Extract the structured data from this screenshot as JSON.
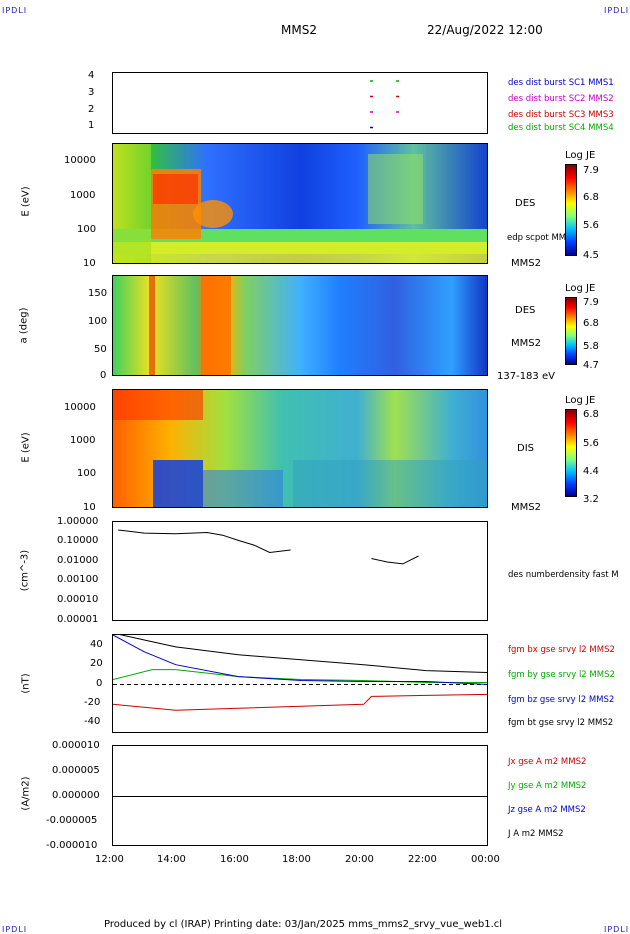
{
  "header": {
    "corner": "IPDLI",
    "spacecraft": "MMS2",
    "datetime": "22/Aug/2022 12:00"
  },
  "footer": {
    "text": "Produced by cl (IRAP)   Printing date: 03/Jan/2025   mms_mms2_srvy_vue_web1.cl"
  },
  "time_axis": {
    "ticks": [
      "12:00",
      "14:00",
      "16:00",
      "18:00",
      "20:00",
      "22:00",
      "00:00"
    ]
  },
  "panels": {
    "p1": {
      "ticks": [
        "4",
        "3",
        "2",
        "1"
      ],
      "legend": [
        "des dist burst SC1 MMS1",
        "des dist burst SC2 MMS2",
        "des dist burst SC3 MMS3",
        "des dist burst SC4 MMS4"
      ],
      "legend_colors": [
        "#0000cc",
        "#cc00cc",
        "#cc0000",
        "#00aa00"
      ]
    },
    "p2": {
      "ylabel": "E (eV)",
      "ticks": [
        "10000",
        "1000",
        "100",
        "10"
      ],
      "right1": "DES",
      "right2": "edp scpot MMS2",
      "right3": "MMS2",
      "cbar_title": "Log JE",
      "cbar_ticks": [
        "7.9",
        "6.8",
        "5.6",
        "4.5"
      ]
    },
    "p3": {
      "ylabel": "a (deg)",
      "ticks": [
        "150",
        "100",
        "50",
        "0"
      ],
      "right1": "DES",
      "right2": "MMS2",
      "right3": "137-183 eV",
      "cbar_title": "Log JE",
      "cbar_ticks": [
        "7.9",
        "6.8",
        "5.8",
        "4.7"
      ]
    },
    "p4": {
      "ylabel": "E (eV)",
      "ticks": [
        "10000",
        "1000",
        "100",
        "10"
      ],
      "right1": "DIS",
      "right2": "MMS2",
      "cbar_title": "Log JE",
      "cbar_ticks": [
        "6.8",
        "5.6",
        "4.4",
        "3.2"
      ]
    },
    "p5": {
      "ylabel": "(cm^-3)",
      "ticks": [
        "1.00000",
        "0.10000",
        "0.01000",
        "0.00100",
        "0.00010",
        "0.00001"
      ],
      "right1": "des numberdensity fast M"
    },
    "p6": {
      "ylabel": "(nT)",
      "ticks": [
        "40",
        "20",
        "0",
        "-20",
        "-40"
      ],
      "legend": [
        "fgm bx gse srvy l2 MMS2",
        "fgm by gse srvy l2 MMS2",
        "fgm bz gse srvy l2 MMS2",
        "fgm bt gse srvy l2 MMS2"
      ],
      "legend_colors": [
        "#cc0000",
        "#00aa00",
        "#0000cc",
        "#000000"
      ]
    },
    "p7": {
      "ylabel": "(A/m2)",
      "ticks": [
        "0.000010",
        "0.000005",
        "0.000000",
        "-0.000005",
        "-0.000010"
      ],
      "legend": [
        "Jx gse A m2 MMS2",
        "Jy gse A m2 MMS2",
        "Jz gse A m2 MMS2",
        "J A m2 MMS2"
      ],
      "legend_colors": [
        "#cc0000",
        "#00aa00",
        "#0000cc",
        "#000000"
      ]
    }
  },
  "chart_data": [
    {
      "type": "scatter",
      "title": "",
      "ylabel": "",
      "ylim": [
        0.5,
        4.5
      ],
      "series": [
        {
          "name": "des dist burst SC1 MMS1",
          "x": [
            "20:15"
          ],
          "y": [
            1
          ]
        },
        {
          "name": "des dist burst SC2 MMS2",
          "x": [
            "20:15",
            "21:05"
          ],
          "y": [
            2,
            2
          ]
        },
        {
          "name": "des dist burst SC3 MMS3",
          "x": [
            "20:15",
            "21:05"
          ],
          "y": [
            3,
            3
          ]
        },
        {
          "name": "des dist burst SC4 MMS4",
          "x": [
            "20:15",
            "21:05"
          ],
          "y": [
            4,
            4
          ]
        }
      ]
    },
    {
      "type": "heatmap",
      "ylabel": "E (eV)",
      "yscale": "log",
      "ylim": [
        10,
        30000
      ],
      "clabel": "Log JE",
      "clim": [
        4.5,
        7.9
      ]
    },
    {
      "type": "heatmap",
      "ylabel": "a (deg)",
      "ylim": [
        0,
        180
      ],
      "clabel": "Log JE",
      "clim": [
        4.7,
        7.9
      ]
    },
    {
      "type": "heatmap",
      "ylabel": "E (eV)",
      "yscale": "log",
      "ylim": [
        10,
        30000
      ],
      "clabel": "Log JE",
      "clim": [
        3.2,
        6.8
      ]
    },
    {
      "type": "line",
      "ylabel": "(cm^-3)",
      "yscale": "log",
      "ylim": [
        1e-05,
        1
      ],
      "series": [
        {
          "name": "des numberdensity fast M",
          "x": [
            "12:10",
            "13:00",
            "14:00",
            "15:00",
            "15:30",
            "16:00",
            "16:30",
            "17:00",
            "17:40",
            "20:15",
            "20:45",
            "21:15",
            "21:45"
          ],
          "y": [
            0.4,
            0.28,
            0.26,
            0.3,
            0.22,
            0.12,
            0.07,
            0.03,
            0.04,
            0.015,
            0.01,
            0.008,
            0.02
          ]
        }
      ]
    },
    {
      "type": "line",
      "ylabel": "(nT)",
      "ylim": [
        -50,
        50
      ],
      "series": [
        {
          "name": "fgm bx gse srvy l2 MMS2",
          "x": [
            "12:00",
            "14:00",
            "16:00",
            "18:00",
            "20:00",
            "20:15",
            "22:00",
            "00:00"
          ],
          "y": [
            -20,
            -26,
            -24,
            -22,
            -20,
            -12,
            -11,
            -10
          ]
        },
        {
          "name": "fgm by gse srvy l2 MMS2",
          "x": [
            "12:00",
            "13:15",
            "14:00",
            "16:00",
            "18:00",
            "20:00",
            "22:00",
            "00:00"
          ],
          "y": [
            5,
            15,
            15,
            8,
            5,
            4,
            2,
            2
          ]
        },
        {
          "name": "fgm bz gse srvy l2 MMS2",
          "x": [
            "12:00",
            "13:00",
            "14:00",
            "16:00",
            "18:00",
            "20:00",
            "22:00",
            "00:00"
          ],
          "y": [
            50,
            33,
            20,
            8,
            4,
            3,
            3,
            0
          ]
        },
        {
          "name": "fgm bt gse srvy l2 MMS2",
          "x": [
            "12:00",
            "13:00",
            "14:00",
            "16:00",
            "18:00",
            "20:00",
            "22:00",
            "00:00"
          ],
          "y": [
            52,
            45,
            38,
            30,
            25,
            20,
            14,
            12
          ]
        }
      ]
    },
    {
      "type": "line",
      "ylabel": "(A/m2)",
      "ylim": [
        -1e-05,
        1e-05
      ],
      "series": [
        {
          "name": "J A m2 MMS2",
          "x": [
            "12:00",
            "00:00"
          ],
          "y": [
            0,
            0
          ]
        }
      ]
    }
  ]
}
